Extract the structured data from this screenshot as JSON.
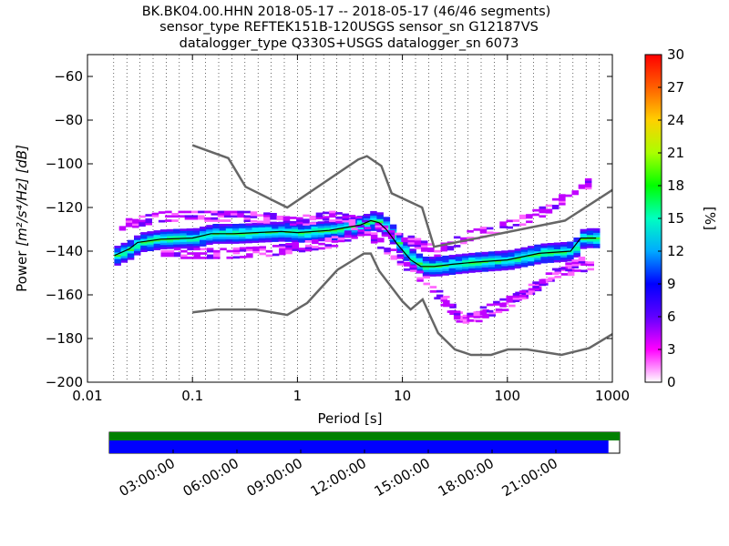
{
  "title": {
    "line1": "BK.BK04.00.HHN   2018-05-17 -- 2018-05-17  (46/46 segments)",
    "line2": "sensor_type REFTEK151B-120USGS sensor_sn G12187VS",
    "line3": "datalogger_type Q330S+USGS datalogger_sn 6073"
  },
  "chart_data": {
    "type": "heatmap",
    "xlabel": "Period [s]",
    "ylabel_prefix": "Power",
    "ylabel_unit": "[m²/s⁴/Hz] [dB]",
    "xscale": "log",
    "xlim": [
      0.01,
      1000
    ],
    "ylim": [
      -200,
      -50
    ],
    "x_ticks": [
      {
        "v": 0.01,
        "label": "0.01"
      },
      {
        "v": 0.1,
        "label": "0.1"
      },
      {
        "v": 1,
        "label": "1"
      },
      {
        "v": 10,
        "label": "10"
      },
      {
        "v": 100,
        "label": "100"
      },
      {
        "v": 1000,
        "label": "1000"
      }
    ],
    "y_ticks": [
      {
        "v": -60,
        "label": "−60"
      },
      {
        "v": -80,
        "label": "−80"
      },
      {
        "v": -100,
        "label": "−100"
      },
      {
        "v": -120,
        "label": "−120"
      },
      {
        "v": -140,
        "label": "−140"
      },
      {
        "v": -160,
        "label": "−160"
      },
      {
        "v": -180,
        "label": "−180"
      },
      {
        "v": -200,
        "label": "−200"
      }
    ],
    "grid": "dotted vertical at period bins",
    "colorbar": {
      "label": "[%]",
      "min": 0,
      "max": 30,
      "ticks": [
        {
          "v": 0,
          "label": "0"
        },
        {
          "v": 3,
          "label": "3"
        },
        {
          "v": 6,
          "label": "6"
        },
        {
          "v": 9,
          "label": "9"
        },
        {
          "v": 12,
          "label": "12"
        },
        {
          "v": 15,
          "label": "15"
        },
        {
          "v": 18,
          "label": "18"
        },
        {
          "v": 21,
          "label": "21"
        },
        {
          "v": 24,
          "label": "24"
        },
        {
          "v": 27,
          "label": "27"
        },
        {
          "v": 30,
          "label": "30"
        }
      ]
    },
    "noise_model_high": [
      [
        0.1,
        -91.5
      ],
      [
        0.22,
        -97.4
      ],
      [
        0.32,
        -110.5
      ],
      [
        0.8,
        -120
      ],
      [
        3.8,
        -98
      ],
      [
        4.6,
        -96.5
      ],
      [
        6.3,
        -101
      ],
      [
        7.9,
        -113.5
      ],
      [
        15.4,
        -120
      ],
      [
        20,
        -138
      ],
      [
        354,
        -126
      ],
      [
        1000,
        -112
      ]
    ],
    "noise_model_low": [
      [
        0.1,
        -168
      ],
      [
        0.17,
        -166.7
      ],
      [
        0.4,
        -166.7
      ],
      [
        0.8,
        -169.2
      ],
      [
        1.24,
        -163.7
      ],
      [
        2.4,
        -148.6
      ],
      [
        4.3,
        -141.1
      ],
      [
        5,
        -141.1
      ],
      [
        6,
        -149
      ],
      [
        10,
        -163
      ],
      [
        12,
        -166.7
      ],
      [
        15.6,
        -162.1
      ],
      [
        21.9,
        -177.5
      ],
      [
        31.6,
        -185
      ],
      [
        45,
        -187.5
      ],
      [
        70,
        -187.5
      ],
      [
        101,
        -185
      ],
      [
        154,
        -185
      ],
      [
        328,
        -187.5
      ],
      [
        600,
        -184.4
      ],
      [
        1000,
        -178
      ]
    ],
    "mean_line": [
      [
        0.018,
        -142
      ],
      [
        0.025,
        -139
      ],
      [
        0.03,
        -136
      ],
      [
        0.05,
        -134.5
      ],
      [
        0.1,
        -134
      ],
      [
        0.15,
        -132
      ],
      [
        0.25,
        -132
      ],
      [
        0.4,
        -131.5
      ],
      [
        0.7,
        -131
      ],
      [
        1,
        -131.5
      ],
      [
        2,
        -130.5
      ],
      [
        3,
        -129
      ],
      [
        4,
        -128
      ],
      [
        5,
        -126
      ],
      [
        6,
        -127
      ],
      [
        7,
        -130
      ],
      [
        9,
        -137
      ],
      [
        12,
        -144
      ],
      [
        15,
        -147
      ],
      [
        20,
        -147
      ],
      [
        30,
        -146
      ],
      [
        50,
        -145
      ],
      [
        100,
        -144
      ],
      [
        200,
        -141
      ],
      [
        400,
        -140
      ],
      [
        500,
        -134
      ],
      [
        700,
        -134
      ]
    ],
    "density_bands": [
      {
        "name": "core",
        "pts": [
          [
            0.018,
            -142
          ],
          [
            0.025,
            -139
          ],
          [
            0.03,
            -136
          ],
          [
            0.05,
            -134.5
          ],
          [
            0.1,
            -134
          ],
          [
            0.15,
            -132
          ],
          [
            0.25,
            -132
          ],
          [
            0.4,
            -131.5
          ],
          [
            0.7,
            -131
          ],
          [
            1,
            -131.5
          ],
          [
            2,
            -130.5
          ],
          [
            3,
            -129
          ],
          [
            4,
            -128
          ],
          [
            5,
            -126
          ],
          [
            6,
            -127
          ],
          [
            7,
            -130
          ],
          [
            9,
            -137
          ],
          [
            12,
            -144
          ],
          [
            15,
            -147
          ],
          [
            20,
            -147
          ],
          [
            30,
            -146
          ],
          [
            50,
            -145
          ],
          [
            100,
            -144
          ],
          [
            200,
            -141
          ],
          [
            400,
            -140
          ],
          [
            500,
            -134
          ],
          [
            700,
            -134
          ]
        ],
        "spread": 4
      },
      {
        "name": "upper_outliers",
        "pts": [
          [
            0.02,
            -128
          ],
          [
            0.05,
            -124
          ],
          [
            0.1,
            -124
          ],
          [
            0.3,
            -124
          ],
          [
            1,
            -126
          ],
          [
            2,
            -124
          ],
          [
            4,
            -127
          ],
          [
            20,
            -140
          ],
          [
            40,
            -133
          ],
          [
            100,
            -128
          ],
          [
            200,
            -122
          ],
          [
            400,
            -113
          ],
          [
            600,
            -108
          ]
        ],
        "spread": 2
      },
      {
        "name": "lower_outliers",
        "pts": [
          [
            0.05,
            -141
          ],
          [
            0.2,
            -141
          ],
          [
            0.5,
            -140
          ],
          [
            1,
            -138
          ],
          [
            2,
            -136
          ],
          [
            4,
            -130
          ],
          [
            20,
            -158
          ],
          [
            35,
            -172
          ],
          [
            70,
            -168
          ],
          [
            150,
            -158
          ],
          [
            300,
            -150
          ],
          [
            600,
            -146
          ]
        ],
        "spread": 2
      },
      {
        "name": "lower_extreme",
        "pts": [
          [
            20,
            -160
          ],
          [
            35,
            -172
          ],
          [
            50,
            -168
          ],
          [
            80,
            -164
          ],
          [
            130,
            -160
          ],
          [
            260,
            -150
          ],
          [
            500,
            -144
          ]
        ],
        "spread": 1.5
      }
    ]
  },
  "timeline": {
    "labels": [
      "03:00:00",
      "06:00:00",
      "09:00:00",
      "12:00:00",
      "15:00:00",
      "18:00:00",
      "21:00:00"
    ],
    "colors": {
      "data": "#0000ff",
      "top": "#008000"
    },
    "data_coverage": 0.978
  }
}
